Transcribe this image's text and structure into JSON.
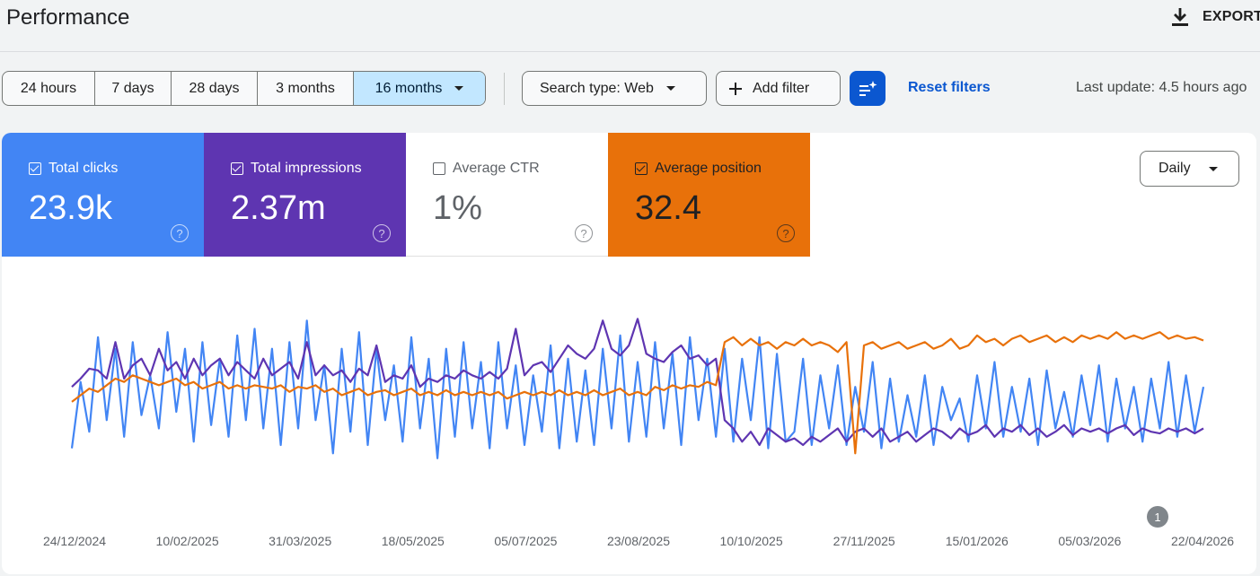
{
  "header": {
    "title": "Performance",
    "export_label": "EXPORT",
    "export_icon": "download-icon"
  },
  "date_ranges": [
    {
      "label": "24 hours",
      "active": false
    },
    {
      "label": "7 days",
      "active": false
    },
    {
      "label": "28 days",
      "active": false
    },
    {
      "label": "3 months",
      "active": false
    },
    {
      "label": "16 months",
      "active": true
    }
  ],
  "filters": {
    "search_type": "Search type: Web",
    "add_filter": "Add filter",
    "reset": "Reset filters",
    "last_update": "Last update: 4.5 hours ago"
  },
  "metrics": [
    {
      "label": "Total clicks",
      "value": "23.9k",
      "checked": true,
      "color": "#4285f4"
    },
    {
      "label": "Total impressions",
      "value": "2.37m",
      "checked": true,
      "color": "#5e35b1"
    },
    {
      "label": "Average CTR",
      "value": "1%",
      "checked": false,
      "color": "#ffffff"
    },
    {
      "label": "Average position",
      "value": "32.4",
      "checked": true,
      "color": "#e8710a"
    }
  ],
  "granularity": "Daily",
  "annotation": "1",
  "chart_data": {
    "type": "line",
    "x_range": [
      "2024-12-24",
      "2026-04-22"
    ],
    "x_ticks": [
      "24/12/2024",
      "10/02/2025",
      "31/03/2025",
      "18/05/2025",
      "05/07/2025",
      "23/08/2025",
      "10/10/2025",
      "27/11/2025",
      "15/01/2026",
      "05/03/2026",
      "22/04/2026"
    ],
    "series": [
      {
        "name": "Total clicks",
        "color": "#4285f4",
        "values": [
          0.18,
          0.58,
          0.28,
          0.85,
          0.35,
          0.78,
          0.25,
          0.82,
          0.38,
          0.62,
          0.3,
          0.88,
          0.4,
          0.78,
          0.22,
          0.82,
          0.32,
          0.72,
          0.25,
          0.86,
          0.35,
          0.9,
          0.3,
          0.78,
          0.2,
          0.82,
          0.3,
          0.95,
          0.35,
          0.68,
          0.15,
          0.78,
          0.28,
          0.88,
          0.2,
          0.78,
          0.35,
          0.68,
          0.22,
          0.85,
          0.3,
          0.72,
          0.12,
          0.78,
          0.25,
          0.82,
          0.3,
          0.7,
          0.18,
          0.82,
          0.3,
          0.68,
          0.2,
          0.62,
          0.28,
          0.8,
          0.18,
          0.72,
          0.22,
          0.65,
          0.2,
          0.78,
          0.3,
          0.86,
          0.22,
          0.7,
          0.25,
          0.82,
          0.3,
          0.75,
          0.2,
          0.85,
          0.35,
          0.72,
          0.25,
          0.78,
          0.22,
          0.72,
          0.35,
          0.85,
          0.18,
          0.75,
          0.22,
          0.28,
          0.72,
          0.2,
          0.62,
          0.3,
          0.68,
          0.2,
          0.55,
          0.28,
          0.7,
          0.18,
          0.6,
          0.22,
          0.5,
          0.25,
          0.62,
          0.2,
          0.55,
          0.35,
          0.48,
          0.22,
          0.62,
          0.3,
          0.7,
          0.25,
          0.55,
          0.28,
          0.6,
          0.2,
          0.65,
          0.3,
          0.52,
          0.25,
          0.62,
          0.32,
          0.68,
          0.22,
          0.6,
          0.3,
          0.55,
          0.22,
          0.6,
          0.3,
          0.7,
          0.25,
          0.62,
          0.28,
          0.55
        ]
      },
      {
        "name": "Total impressions",
        "color": "#5e35b1",
        "values": [
          0.55,
          0.6,
          0.66,
          0.65,
          0.6,
          0.82,
          0.6,
          0.68,
          0.72,
          0.62,
          0.78,
          0.65,
          0.7,
          0.6,
          0.72,
          0.62,
          0.68,
          0.72,
          0.62,
          0.7,
          0.65,
          0.6,
          0.72,
          0.62,
          0.66,
          0.7,
          0.6,
          0.82,
          0.62,
          0.68,
          0.62,
          0.65,
          0.58,
          0.66,
          0.62,
          0.8,
          0.58,
          0.62,
          0.6,
          0.68,
          0.55,
          0.6,
          0.58,
          0.62,
          0.6,
          0.65,
          0.62,
          0.6,
          0.64,
          0.6,
          0.66,
          0.9,
          0.62,
          0.68,
          0.7,
          0.64,
          0.72,
          0.8,
          0.75,
          0.72,
          0.78,
          0.95,
          0.78,
          0.74,
          0.8,
          0.96,
          0.75,
          0.72,
          0.7,
          0.76,
          0.8,
          0.72,
          0.74,
          0.68,
          0.72,
          0.35,
          0.3,
          0.22,
          0.28,
          0.2,
          0.3,
          0.26,
          0.22,
          0.24,
          0.2,
          0.25,
          0.22,
          0.26,
          0.3,
          0.22,
          0.28,
          0.3,
          0.25,
          0.3,
          0.22,
          0.25,
          0.28,
          0.22,
          0.26,
          0.3,
          0.28,
          0.24,
          0.3,
          0.26,
          0.28,
          0.32,
          0.25,
          0.3,
          0.28,
          0.32,
          0.26,
          0.3,
          0.25,
          0.28,
          0.32,
          0.26,
          0.3,
          0.28,
          0.3,
          0.27,
          0.3,
          0.32,
          0.26,
          0.3,
          0.28,
          0.27,
          0.3,
          0.28,
          0.3,
          0.27,
          0.3
        ]
      },
      {
        "name": "Average position",
        "color": "#e8710a",
        "values": [
          0.46,
          0.5,
          0.54,
          0.52,
          0.56,
          0.6,
          0.58,
          0.62,
          0.6,
          0.58,
          0.56,
          0.58,
          0.6,
          0.56,
          0.58,
          0.54,
          0.56,
          0.58,
          0.54,
          0.56,
          0.54,
          0.56,
          0.55,
          0.54,
          0.56,
          0.52,
          0.55,
          0.54,
          0.56,
          0.52,
          0.54,
          0.5,
          0.52,
          0.54,
          0.5,
          0.52,
          0.53,
          0.5,
          0.52,
          0.54,
          0.5,
          0.52,
          0.5,
          0.53,
          0.5,
          0.52,
          0.5,
          0.52,
          0.5,
          0.52,
          0.48,
          0.5,
          0.52,
          0.5,
          0.52,
          0.5,
          0.53,
          0.5,
          0.52,
          0.5,
          0.53,
          0.5,
          0.52,
          0.54,
          0.5,
          0.52,
          0.5,
          0.55,
          0.53,
          0.56,
          0.54,
          0.56,
          0.55,
          0.58,
          0.56,
          0.82,
          0.85,
          0.8,
          0.84,
          0.8,
          0.82,
          0.78,
          0.82,
          0.8,
          0.84,
          0.8,
          0.82,
          0.8,
          0.76,
          0.82,
          0.15,
          0.8,
          0.82,
          0.78,
          0.8,
          0.82,
          0.78,
          0.8,
          0.82,
          0.78,
          0.8,
          0.84,
          0.78,
          0.8,
          0.86,
          0.82,
          0.84,
          0.8,
          0.84,
          0.86,
          0.82,
          0.84,
          0.86,
          0.82,
          0.85,
          0.82,
          0.86,
          0.84,
          0.86,
          0.84,
          0.88,
          0.84,
          0.86,
          0.84,
          0.86,
          0.88,
          0.84,
          0.86,
          0.84,
          0.85,
          0.83
        ]
      }
    ]
  }
}
